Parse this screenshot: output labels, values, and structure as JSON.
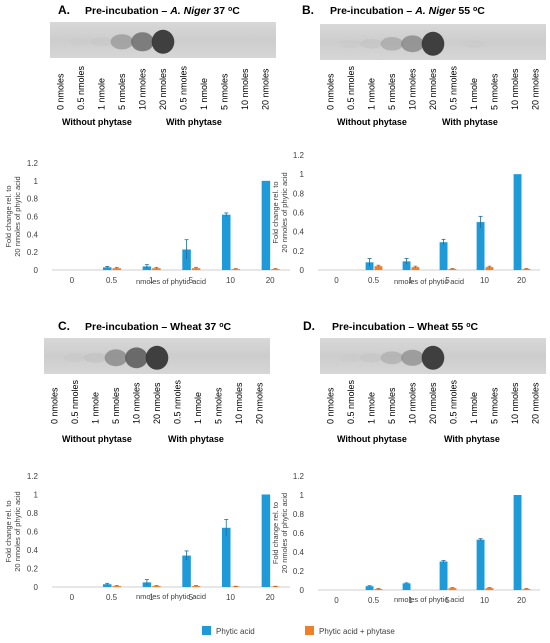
{
  "gel_panels": [
    {
      "letter": "A.",
      "title": "Pre-incubation – A. Niger 37 ºC",
      "title_parts": [
        "Pre-incubation – ",
        "A. Niger",
        " 37 ",
        "o",
        "C"
      ],
      "lane_labels": [
        "0 nmoles",
        "0.5 nmoles",
        "1 nmole",
        "5 nmoles",
        "10 nmoles",
        "20 nmoles",
        "0.5 nmoles",
        "1 nmole",
        "5 nmoles",
        "10 nmoles",
        "20 nmoles"
      ],
      "band_intensity": [
        0,
        0.02,
        0.06,
        0.45,
        0.7,
        1.0,
        0,
        0,
        0,
        0,
        0
      ],
      "groups": [
        "Without phytase",
        "With phytase"
      ]
    },
    {
      "letter": "B.",
      "title": "Pre-incubation – A. Niger 55 ºC",
      "title_parts": [
        "Pre-incubation – ",
        "A. Niger",
        " 55 ",
        "o",
        "C"
      ],
      "lane_labels": [
        "0 nmoles",
        "0.5 nmoles",
        "1 nmole",
        "5 nmoles",
        "10 nmoles",
        "20 nmoles",
        "0.5 nmoles",
        "1 nmole",
        "5 nmoles",
        "10 nmoles",
        "20 nmoles"
      ],
      "band_intensity": [
        0,
        0.04,
        0.1,
        0.35,
        0.55,
        1.0,
        0,
        0.03,
        0,
        0,
        0
      ],
      "groups": [
        "Without phytase",
        "With phytase"
      ]
    },
    {
      "letter": "C.",
      "title": "Pre-incubation – Wheat 37 ºC",
      "title_parts": [
        "Pre-incubation – Wheat 37 ",
        "o",
        "C"
      ],
      "lane_labels": [
        "0 nmoles",
        "0.5 nmoles",
        "1 nmole",
        "5 nmoles",
        "10 nmoles",
        "20 nmoles",
        "0.5 nmoles",
        "1 nmole",
        "5 nmoles",
        "10 nmoles",
        "20 nmoles"
      ],
      "band_intensity": [
        0,
        0.05,
        0.12,
        0.55,
        0.8,
        1.0,
        0,
        0,
        0,
        0,
        0
      ],
      "groups": [
        "Without phytase",
        "With phytase"
      ]
    },
    {
      "letter": "D.",
      "title": "Pre-incubation – Wheat 55 ºC",
      "title_parts": [
        "Pre-incubation – Wheat 55 ",
        "o",
        "C"
      ],
      "lane_labels": [
        "0 nmoles",
        "0.5 nmoles",
        "1 nmole",
        "5 nmoles",
        "10 nmoles",
        "20 nmoles",
        "0.5 nmoles",
        "1 nmole",
        "5 nmoles",
        "10 nmoles",
        "20 nmoles"
      ],
      "band_intensity": [
        0,
        0.03,
        0.08,
        0.3,
        0.5,
        1.0,
        0,
        0,
        0,
        0,
        0
      ],
      "groups": [
        "Without phytase",
        "With phytase"
      ]
    }
  ],
  "chart_data": [
    {
      "type": "bar",
      "categories": [
        "0",
        "0.5",
        "1",
        "5",
        "10",
        "20"
      ],
      "xlabel": "nmoles of phytic acid",
      "ylabel": "Fold change rel. to 20 nmoles of phytic acid",
      "ylim": [
        0,
        1.2
      ],
      "yticks": [
        "0",
        "0.2",
        "0.4",
        "0.6",
        "0.8",
        "1",
        "1.2"
      ],
      "series": [
        {
          "name": "Phytic acid",
          "color": "#1f9ad8",
          "values": [
            0,
            0.03,
            0.04,
            0.23,
            0.62,
            1.0
          ],
          "errors": [
            0,
            0.01,
            0.02,
            0.11,
            0.02,
            0
          ]
        },
        {
          "name": "Phytic acid + phytase",
          "color": "#f07f2a",
          "values": [
            0,
            0.02,
            0.02,
            0.02,
            0.01,
            0.01
          ],
          "errors": [
            0,
            0.01,
            0.01,
            0.01,
            0.005,
            0.005
          ]
        }
      ]
    },
    {
      "type": "bar",
      "categories": [
        "0",
        "0.5",
        "1",
        "5",
        "10",
        "20"
      ],
      "xlabel": "nmoles of phytic acid",
      "ylabel": "Fold change rel. to 20 nmoles of phytic acid",
      "ylim": [
        0,
        1.2
      ],
      "yticks": [
        "0",
        "0.2",
        "0.4",
        "0.6",
        "0.8",
        "1",
        "1.2"
      ],
      "series": [
        {
          "name": "Phytic acid",
          "color": "#1f9ad8",
          "values": [
            0,
            0.08,
            0.09,
            0.29,
            0.5,
            1.0
          ],
          "errors": [
            0,
            0.04,
            0.03,
            0.03,
            0.06,
            0
          ]
        },
        {
          "name": "Phytic acid + phytase",
          "color": "#f07f2a",
          "values": [
            0,
            0.04,
            0.03,
            0.01,
            0.03,
            0.01
          ],
          "errors": [
            0,
            0.01,
            0.01,
            0.005,
            0.01,
            0.005
          ]
        }
      ]
    },
    {
      "type": "bar",
      "categories": [
        "0",
        "0.5",
        "1",
        "5",
        "10",
        "20"
      ],
      "xlabel": "nmoles of phytic acid",
      "ylabel": "Fold change rel. to 20 nmoles of phytic acid",
      "ylim": [
        0,
        1.2
      ],
      "yticks": [
        "0",
        "0.2",
        "0.4",
        "0.6",
        "0.8",
        "1",
        "1.2"
      ],
      "series": [
        {
          "name": "Phytic acid",
          "color": "#1f9ad8",
          "values": [
            0,
            0.03,
            0.05,
            0.34,
            0.64,
            1.0
          ],
          "errors": [
            0,
            0.01,
            0.03,
            0.05,
            0.09,
            0
          ]
        },
        {
          "name": "Phytic acid + phytase",
          "color": "#f07f2a",
          "values": [
            0,
            0.01,
            0.01,
            0.01,
            0.005,
            0.005
          ],
          "errors": [
            0,
            0.005,
            0.005,
            0.005,
            0.003,
            0.003
          ]
        }
      ]
    },
    {
      "type": "bar",
      "categories": [
        "0",
        "0.5",
        "1",
        "5",
        "10",
        "20"
      ],
      "xlabel": "nmoles of phytic acid",
      "ylabel": "Fold change rel. to 20 nmoles of phytic acid",
      "ylim": [
        0,
        1.2
      ],
      "yticks": [
        "0",
        "0.2",
        "0.4",
        "0.6",
        "0.8",
        "1",
        "1.2"
      ],
      "series": [
        {
          "name": "Phytic acid",
          "color": "#1f9ad8",
          "values": [
            0,
            0.04,
            0.07,
            0.3,
            0.53,
            1.0
          ],
          "errors": [
            0,
            0.005,
            0.005,
            0.01,
            0.01,
            0
          ]
        },
        {
          "name": "Phytic acid + phytase",
          "color": "#f07f2a",
          "values": [
            0,
            0.01,
            0,
            0.02,
            0.02,
            0.01
          ],
          "errors": [
            0,
            0.005,
            0,
            0.005,
            0.005,
            0.005
          ]
        }
      ]
    }
  ],
  "legend": {
    "items": [
      {
        "label": "Phytic acid",
        "color": "#1f9ad8"
      },
      {
        "label": "Phytic acid + phytase",
        "color": "#f07f2a"
      }
    ]
  }
}
